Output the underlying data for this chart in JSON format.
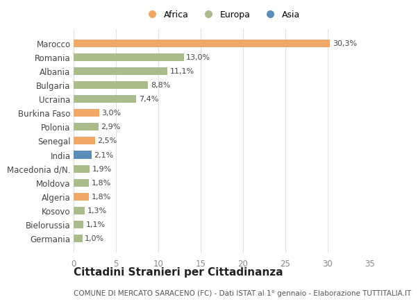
{
  "countries": [
    "Marocco",
    "Romania",
    "Albania",
    "Bulgaria",
    "Ucraina",
    "Burkina Faso",
    "Polonia",
    "Senegal",
    "India",
    "Macedonia d/N.",
    "Moldova",
    "Algeria",
    "Kosovo",
    "Bielorussia",
    "Germania"
  ],
  "values": [
    30.3,
    13.0,
    11.1,
    8.8,
    7.4,
    3.0,
    2.9,
    2.5,
    2.1,
    1.9,
    1.8,
    1.8,
    1.3,
    1.1,
    1.0
  ],
  "labels": [
    "30,3%",
    "13,0%",
    "11,1%",
    "8,8%",
    "7,4%",
    "3,0%",
    "2,9%",
    "2,5%",
    "2,1%",
    "1,9%",
    "1,8%",
    "1,8%",
    "1,3%",
    "1,1%",
    "1,0%"
  ],
  "continents": [
    "Africa",
    "Europa",
    "Europa",
    "Europa",
    "Europa",
    "Africa",
    "Europa",
    "Africa",
    "Asia",
    "Europa",
    "Europa",
    "Africa",
    "Europa",
    "Europa",
    "Europa"
  ],
  "colors": {
    "Africa": "#F0A868",
    "Europa": "#A8BC8C",
    "Asia": "#5B8DB8"
  },
  "xlim": [
    0,
    35
  ],
  "xticks": [
    0,
    5,
    10,
    15,
    20,
    25,
    30,
    35
  ],
  "title": "Cittadini Stranieri per Cittadinanza",
  "subtitle": "COMUNE DI MERCATO SARACENO (FC) - Dati ISTAT al 1° gennaio - Elaborazione TUTTITALIA.IT",
  "background_color": "#ffffff",
  "plot_bg_color": "#ffffff",
  "bar_height": 0.55,
  "grid_color": "#e0e0e0",
  "label_fontsize": 8.0,
  "ytick_fontsize": 8.5,
  "xtick_fontsize": 8.5,
  "title_fontsize": 11,
  "subtitle_fontsize": 7.5,
  "legend_labels": [
    "Africa",
    "Europa",
    "Asia"
  ]
}
